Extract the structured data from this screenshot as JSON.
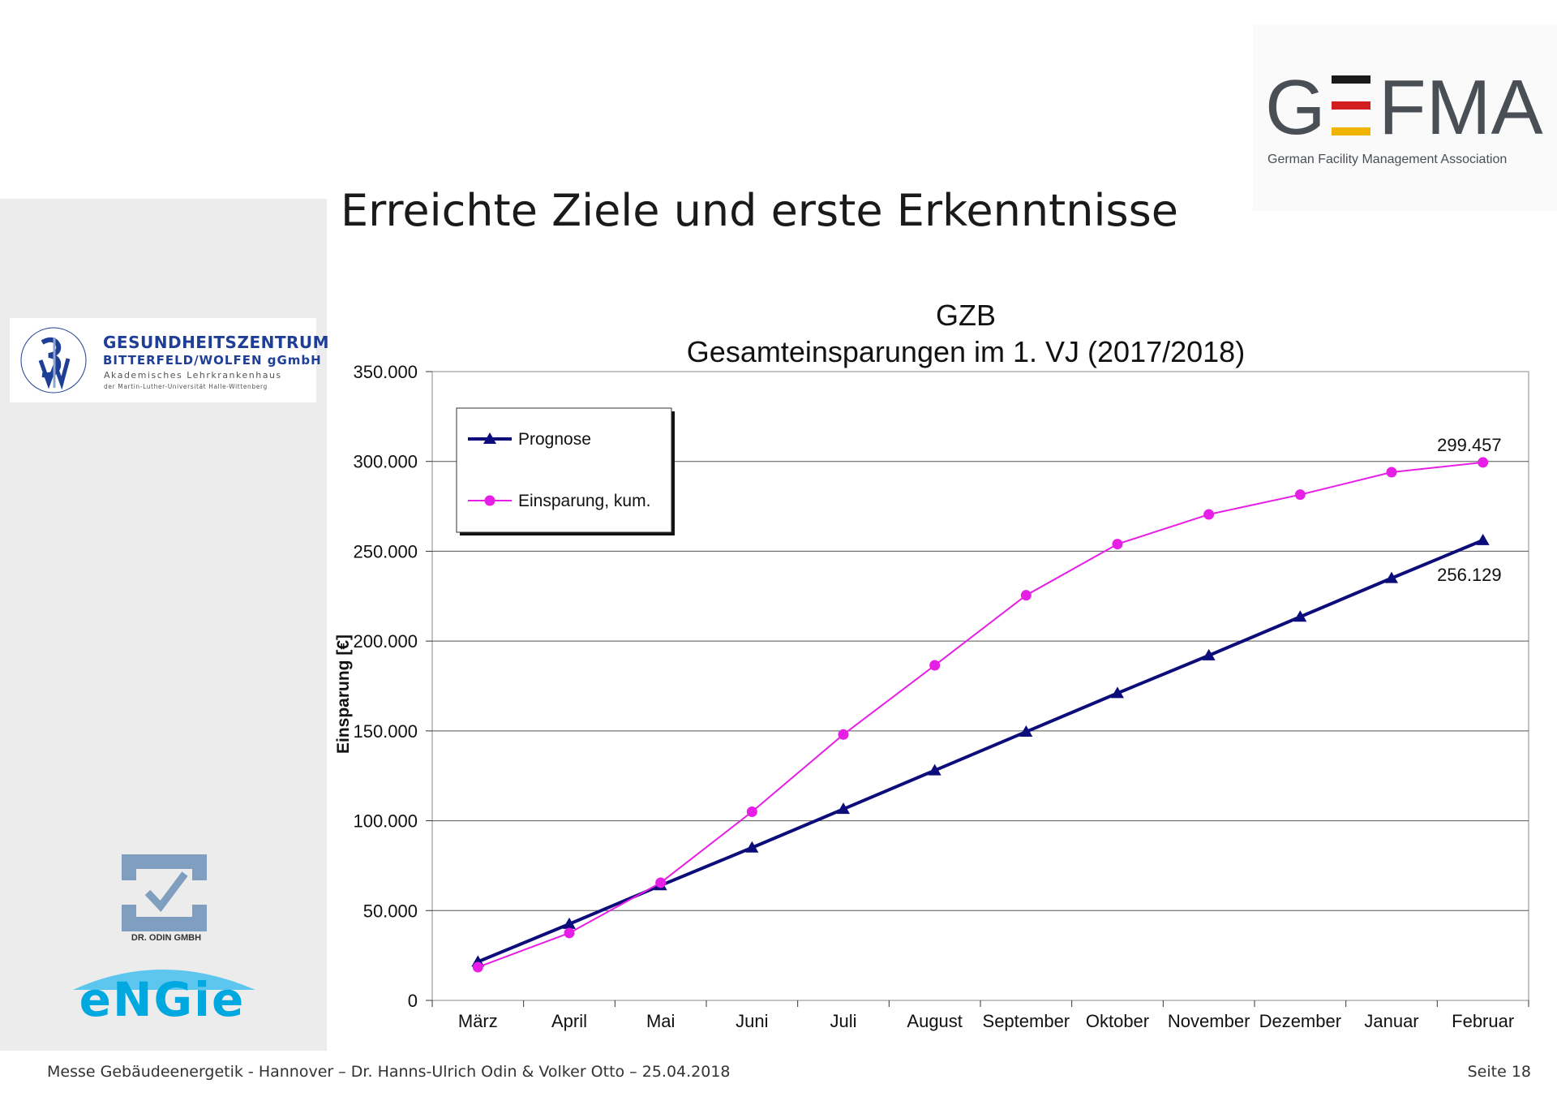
{
  "slide": {
    "title": "Erreichte Ziele und erste Erkenntnisse",
    "footer_left": "Messe Gebäudeenergetik - Hannover – Dr. Hanns-Ulrich Odin & Volker Otto – 25.04.2018",
    "footer_right": "Seite 18"
  },
  "logos": {
    "gzb": {
      "name": "GESUNDHEITSZENTRUM",
      "sub": "BITTERFELD/WOLFEN gGmbH",
      "line3": "Akademisches Lehrkrankenhaus",
      "line4": "der Martin-Luther-Universität Halle-Wittenberg",
      "ring_text": "GESUNDHEITSZENTRUM · BITTERFELD/WOLFEN gGmbH ·",
      "color": "#1f3e96"
    },
    "odin": {
      "label": "DR. ODIN GMBH",
      "color": "#7f9ec0"
    },
    "engie": {
      "label": "eNGie",
      "color": "#00a8e0"
    },
    "gefma": {
      "word": "GEFMA",
      "tagline": "German Facility Management Association",
      "color": "#4a4f55"
    }
  },
  "chart_data": {
    "type": "line",
    "title": [
      "GZB",
      "Gesamteinsparungen im 1. VJ (2017/2018)"
    ],
    "xlabel": "",
    "ylabel": "Einsparung [€]",
    "ylim": [
      0,
      350000
    ],
    "yticks": [
      {
        "value": 0,
        "label": "0"
      },
      {
        "value": 50000,
        "label": "50.000"
      },
      {
        "value": 100000,
        "label": "100.000"
      },
      {
        "value": 150000,
        "label": "150.000"
      },
      {
        "value": 200000,
        "label": "200.000"
      },
      {
        "value": 250000,
        "label": "250.000"
      },
      {
        "value": 300000,
        "label": "300.000"
      },
      {
        "value": 350000,
        "label": "350.000"
      }
    ],
    "categories": [
      "März",
      "April",
      "Mai",
      "Juni",
      "Juli",
      "August",
      "September",
      "Oktober",
      "November",
      "Dezember",
      "Januar",
      "Februar"
    ],
    "grid": true,
    "legend": "top-left",
    "series": [
      {
        "name": "Prognose",
        "color": "#0c0c7a",
        "marker": "triangle",
        "values": [
          21500,
          42500,
          64000,
          85000,
          106500,
          128000,
          149500,
          171000,
          192000,
          213500,
          235000,
          256129
        ],
        "end_label": "256.129"
      },
      {
        "name": "Einsparung, kum.",
        "color": "#e61ee6",
        "marker": "circle",
        "values": [
          18500,
          37500,
          65500,
          105000,
          148000,
          186500,
          225500,
          254000,
          270500,
          281500,
          294000,
          299457
        ],
        "end_label": "299.457"
      }
    ]
  }
}
